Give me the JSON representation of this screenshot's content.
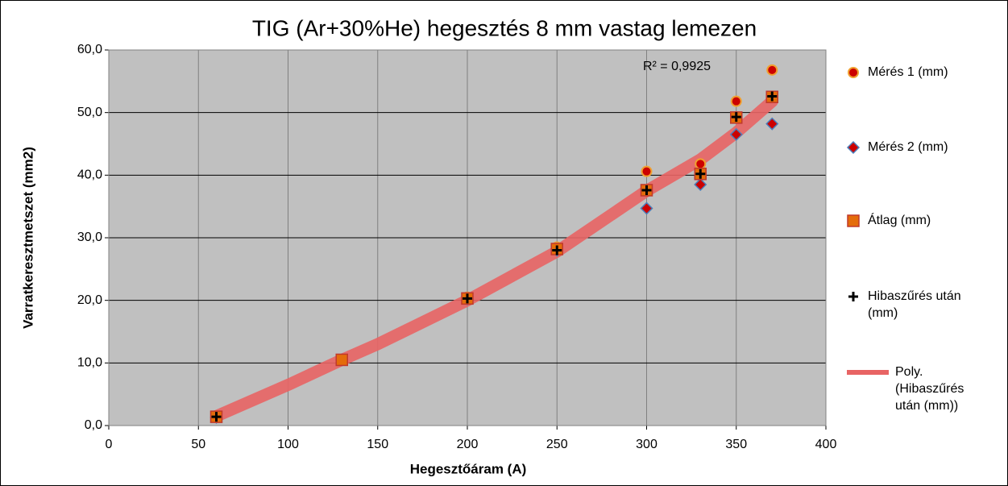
{
  "chart_data": {
    "type": "scatter",
    "title": "TIG (Ar+30%He) hegesztés 8 mm vastag lemezen",
    "x_label": "Hegesztőáram (A)",
    "y_label": "Varratkeresztmetszet (mm2)",
    "annotation": "R² = 0,9925",
    "xlim": [
      0,
      400
    ],
    "xticks": [
      0,
      50,
      100,
      150,
      200,
      250,
      300,
      350,
      400
    ],
    "ylim": [
      0,
      60
    ],
    "yticks": [
      {
        "value": 0,
        "label": "0,0"
      },
      {
        "value": 10,
        "label": "10,0"
      },
      {
        "value": 20,
        "label": "20,0"
      },
      {
        "value": 30,
        "label": "30,0"
      },
      {
        "value": 40,
        "label": "40,0"
      },
      {
        "value": 50,
        "label": "50,0"
      },
      {
        "value": 60,
        "label": "60,0"
      }
    ],
    "grid": true,
    "series": [
      {
        "name": "Poly. (Hibaszűrés után (mm))",
        "marker": "line",
        "color": "#e86464",
        "x": [
          60,
          100,
          130,
          150,
          200,
          250,
          300,
          330,
          350,
          370
        ],
        "values": [
          1.5,
          6.5,
          10.5,
          13.0,
          20.0,
          27.8,
          37.5,
          42.5,
          46.8,
          51.8
        ]
      },
      {
        "name": "Mérés 1 (mm)",
        "marker": "circle",
        "color": "#cc0000",
        "x": [
          60,
          130,
          200,
          250,
          300,
          330,
          350,
          370
        ],
        "values": [
          1.5,
          10.5,
          20.5,
          28.5,
          40.6,
          41.8,
          51.8,
          56.8
        ]
      },
      {
        "name": "Mérés 2 (mm)",
        "marker": "diamond",
        "color": "#cc0000",
        "x": [
          60,
          130,
          200,
          250,
          300,
          330,
          350,
          370
        ],
        "values": [
          1.3,
          10.5,
          20.2,
          28.0,
          34.7,
          38.5,
          46.5,
          48.2
        ]
      },
      {
        "name": "Átlag (mm)",
        "marker": "square",
        "color": "#e46c0a",
        "x": [
          60,
          130,
          200,
          250,
          300,
          330,
          350,
          370
        ],
        "values": [
          1.4,
          10.5,
          20.3,
          28.2,
          37.6,
          40.2,
          49.2,
          52.5
        ]
      },
      {
        "name": "Hibaszűrés után (mm)",
        "marker": "plus",
        "color": "#000000",
        "x": [
          60,
          200,
          250,
          300,
          330,
          350,
          370
        ],
        "values": [
          1.4,
          20.3,
          28.0,
          37.6,
          40.2,
          49.3,
          52.6
        ]
      }
    ]
  }
}
